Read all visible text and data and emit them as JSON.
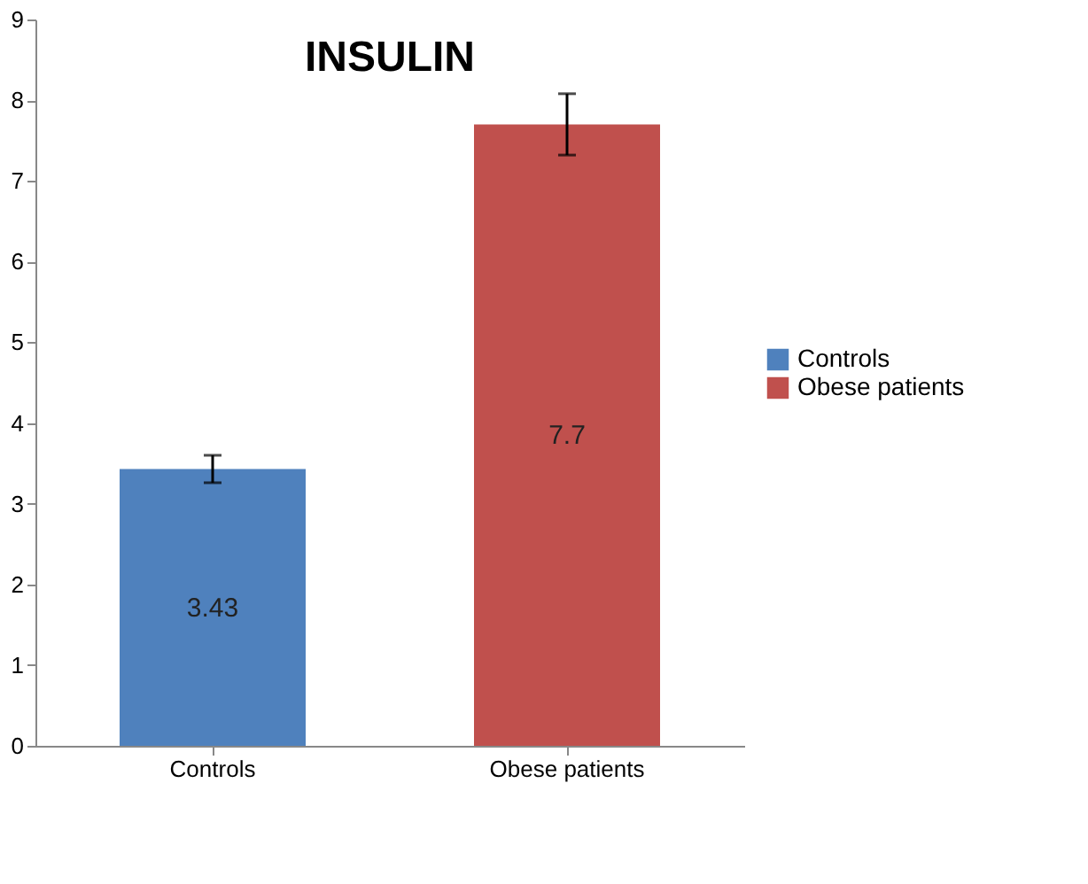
{
  "chart_data": {
    "type": "bar",
    "title": "INSULIN",
    "categories": [
      "Controls",
      "Obese patients"
    ],
    "series": [
      {
        "name": "Controls",
        "color": "#4f81bd",
        "values": [
          3.43,
          null
        ],
        "errors": [
          0.17,
          null
        ]
      },
      {
        "name": "Obese patients",
        "color": "#c0504d",
        "values": [
          null,
          7.7
        ],
        "errors": [
          null,
          0.38
        ]
      }
    ],
    "stacked": true,
    "ylim": [
      0,
      9
    ],
    "yticks": [
      0,
      1,
      2,
      3,
      4,
      5,
      6,
      7,
      8,
      9
    ],
    "grid": false,
    "legend": "right",
    "data_labels": true
  }
}
